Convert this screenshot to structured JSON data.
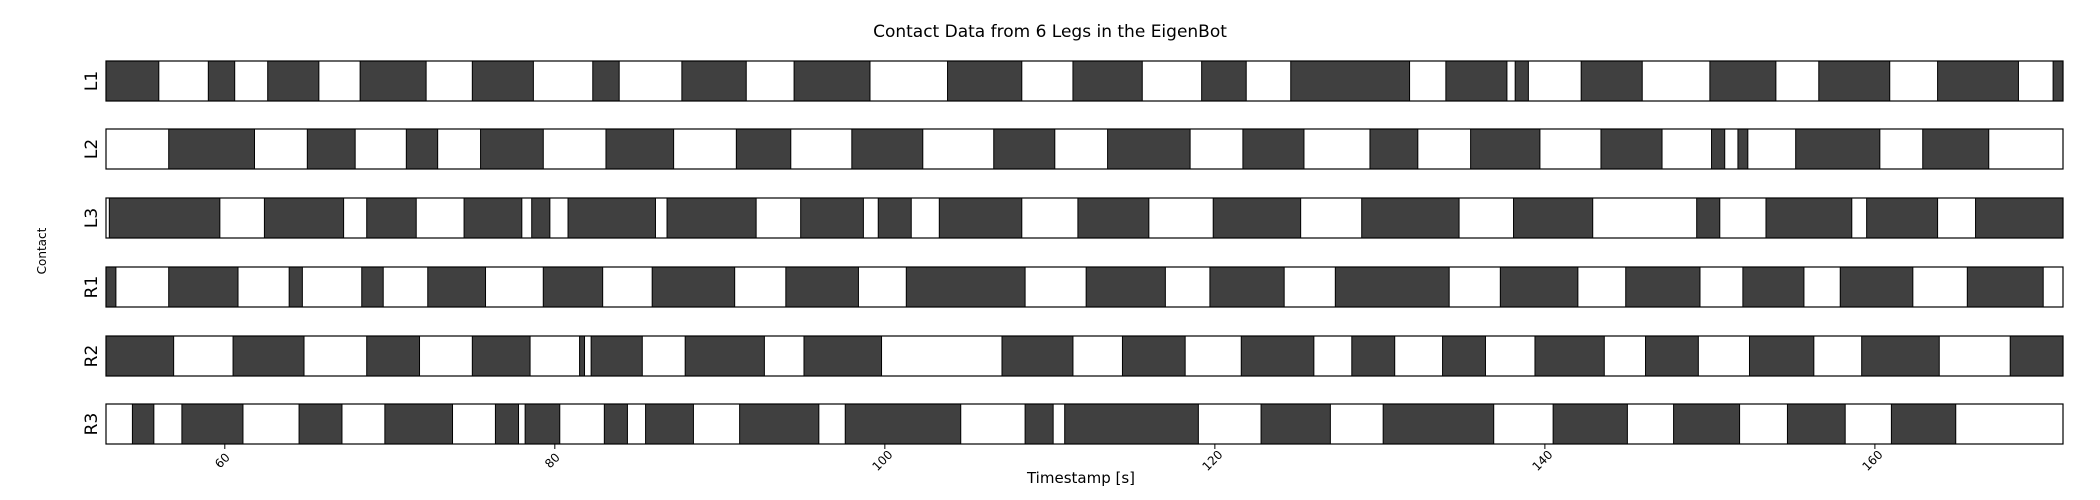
{
  "chart_data": {
    "type": "heatmap",
    "title": "Contact Data from 6 Legs in the EigenBot",
    "xlabel": "Timestamp [s]",
    "ylabel": "Contact",
    "xlim": [
      52.8,
      171.4
    ],
    "x_ticks": [
      60,
      80,
      100,
      120,
      140,
      160
    ],
    "states": [
      "contact",
      "no contact"
    ],
    "colors": {
      "contact": "#404040",
      "no_contact": "#ffffff",
      "edge": "#000000"
    },
    "legs": [
      {
        "name": "L1",
        "contact_intervals": [
          [
            52.8,
            56.0
          ],
          [
            59.0,
            60.6
          ],
          [
            62.6,
            65.7
          ],
          [
            68.2,
            72.2
          ],
          [
            75.0,
            78.7
          ],
          [
            82.3,
            83.9
          ],
          [
            87.7,
            91.6
          ],
          [
            94.5,
            99.1
          ],
          [
            103.8,
            108.3
          ],
          [
            111.4,
            115.6
          ],
          [
            119.2,
            121.9
          ],
          [
            124.6,
            131.8
          ],
          [
            134.0,
            137.7
          ],
          [
            138.2,
            139.0
          ],
          [
            142.2,
            145.9
          ],
          [
            150.0,
            154.0
          ],
          [
            156.6,
            160.9
          ],
          [
            163.8,
            168.7
          ],
          [
            170.8,
            171.4
          ]
        ]
      },
      {
        "name": "L2",
        "contact_intervals": [
          [
            56.6,
            61.8
          ],
          [
            65.0,
            67.9
          ],
          [
            71.0,
            72.9
          ],
          [
            75.5,
            79.3
          ],
          [
            83.1,
            87.2
          ],
          [
            91.0,
            94.3
          ],
          [
            98.0,
            102.3
          ],
          [
            106.6,
            110.3
          ],
          [
            113.5,
            118.5
          ],
          [
            121.7,
            125.4
          ],
          [
            129.4,
            132.3
          ],
          [
            135.5,
            139.7
          ],
          [
            143.4,
            147.1
          ],
          [
            150.1,
            150.9
          ],
          [
            151.7,
            152.3
          ],
          [
            155.2,
            160.3
          ],
          [
            162.9,
            166.9
          ]
        ]
      },
      {
        "name": "L3",
        "contact_intervals": [
          [
            53.0,
            59.7
          ],
          [
            62.4,
            67.2
          ],
          [
            68.6,
            71.6
          ],
          [
            74.5,
            78.0
          ],
          [
            78.6,
            79.7
          ],
          [
            80.8,
            86.1
          ],
          [
            86.8,
            92.2
          ],
          [
            94.9,
            98.7
          ],
          [
            99.6,
            101.6
          ],
          [
            103.3,
            108.3
          ],
          [
            111.7,
            116.0
          ],
          [
            119.9,
            125.2
          ],
          [
            128.9,
            134.8
          ],
          [
            138.1,
            142.9
          ],
          [
            149.2,
            150.6
          ],
          [
            153.4,
            158.6
          ],
          [
            159.5,
            163.8
          ],
          [
            166.1,
            171.4
          ]
        ]
      },
      {
        "name": "R1",
        "contact_intervals": [
          [
            52.8,
            53.4
          ],
          [
            56.6,
            60.8
          ],
          [
            63.9,
            64.7
          ],
          [
            68.3,
            69.6
          ],
          [
            72.3,
            75.8
          ],
          [
            79.3,
            82.9
          ],
          [
            85.9,
            90.9
          ],
          [
            94.0,
            98.4
          ],
          [
            101.3,
            108.5
          ],
          [
            112.2,
            117.0
          ],
          [
            119.7,
            124.2
          ],
          [
            127.3,
            134.2
          ],
          [
            137.3,
            142.0
          ],
          [
            144.9,
            149.4
          ],
          [
            152.0,
            155.7
          ],
          [
            157.9,
            162.3
          ],
          [
            165.6,
            170.2
          ]
        ]
      },
      {
        "name": "R2",
        "contact_intervals": [
          [
            52.8,
            56.9
          ],
          [
            60.5,
            64.8
          ],
          [
            68.6,
            71.8
          ],
          [
            75.0,
            78.5
          ],
          [
            81.5,
            81.8
          ],
          [
            82.2,
            85.3
          ],
          [
            87.9,
            92.7
          ],
          [
            95.1,
            99.8
          ],
          [
            107.1,
            111.4
          ],
          [
            114.4,
            118.2
          ],
          [
            121.6,
            126.0
          ],
          [
            128.3,
            130.9
          ],
          [
            133.8,
            136.4
          ],
          [
            139.4,
            143.6
          ],
          [
            146.1,
            149.3
          ],
          [
            152.4,
            156.3
          ],
          [
            159.2,
            163.9
          ],
          [
            168.2,
            171.4
          ]
        ]
      },
      {
        "name": "R3",
        "contact_intervals": [
          [
            54.4,
            55.7
          ],
          [
            57.4,
            61.1
          ],
          [
            64.5,
            67.1
          ],
          [
            69.7,
            73.8
          ],
          [
            76.4,
            77.8
          ],
          [
            78.2,
            80.3
          ],
          [
            83.0,
            84.4
          ],
          [
            85.5,
            88.4
          ],
          [
            91.2,
            96.0
          ],
          [
            97.6,
            104.6
          ],
          [
            108.5,
            110.2
          ],
          [
            110.9,
            119.0
          ],
          [
            122.8,
            127.0
          ],
          [
            130.2,
            136.9
          ],
          [
            140.5,
            145.0
          ],
          [
            147.8,
            151.8
          ],
          [
            154.7,
            158.2
          ],
          [
            161.0,
            164.9
          ]
        ]
      }
    ]
  }
}
